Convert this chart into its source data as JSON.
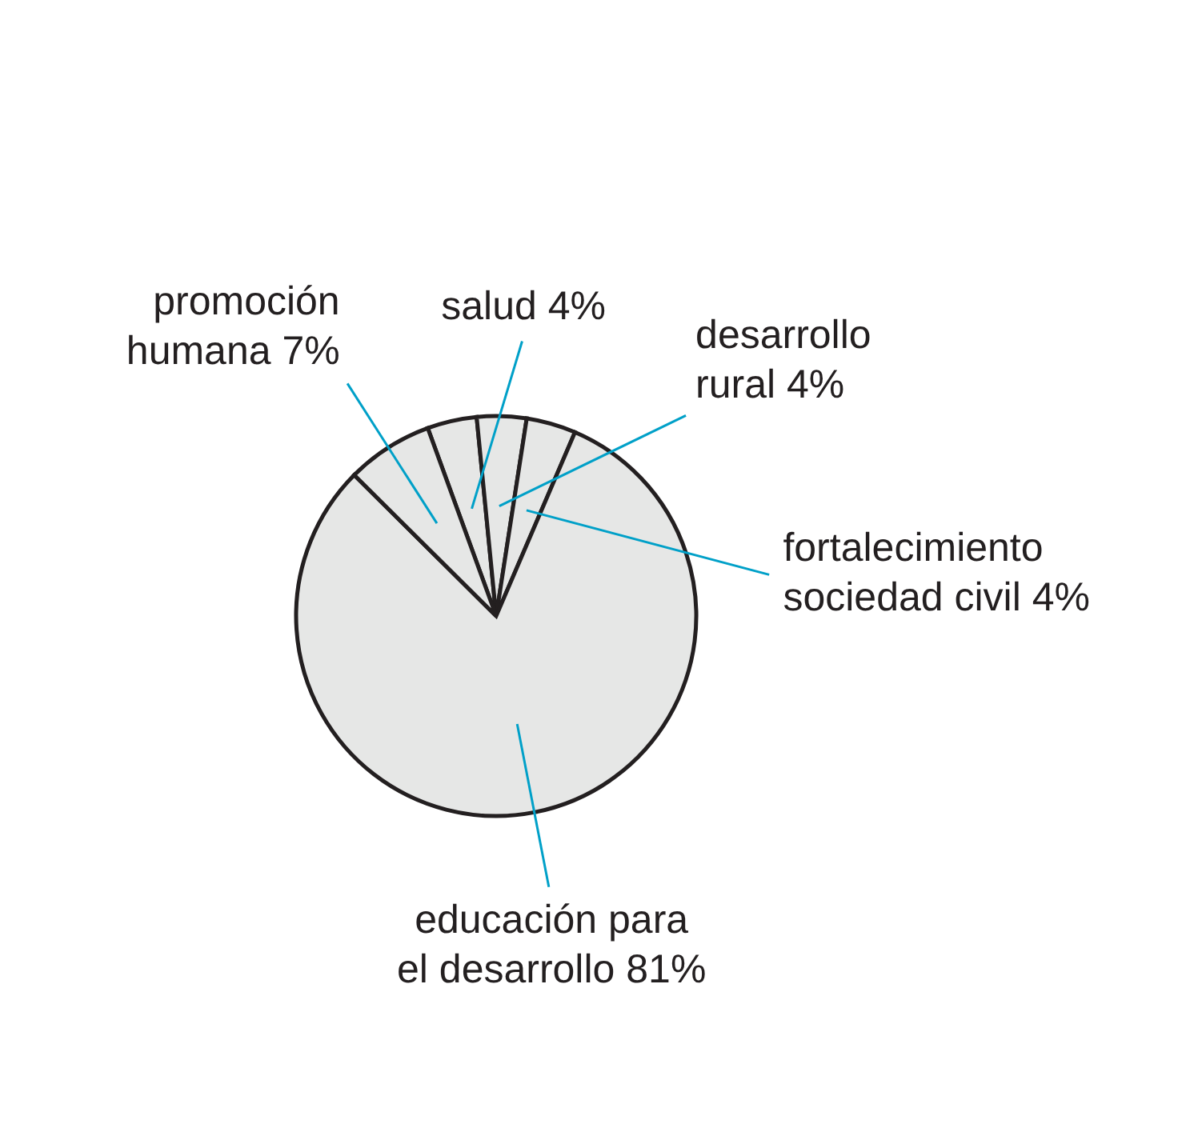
{
  "chart_data": {
    "type": "pie",
    "categories": [
      "salud",
      "desarrollo rural",
      "fortalecimiento sociedad civil",
      "educación para el desarrollo",
      "promoción humana"
    ],
    "values": [
      4,
      4,
      4,
      81,
      7
    ],
    "value_labels": [
      "4%",
      "4%",
      "4%",
      "81%",
      "7%"
    ],
    "colors": [
      "#e6e7e6",
      "#e6e7e6",
      "#e6e7e6",
      "#e6e7e6",
      "#e6e7e6"
    ]
  }
}
